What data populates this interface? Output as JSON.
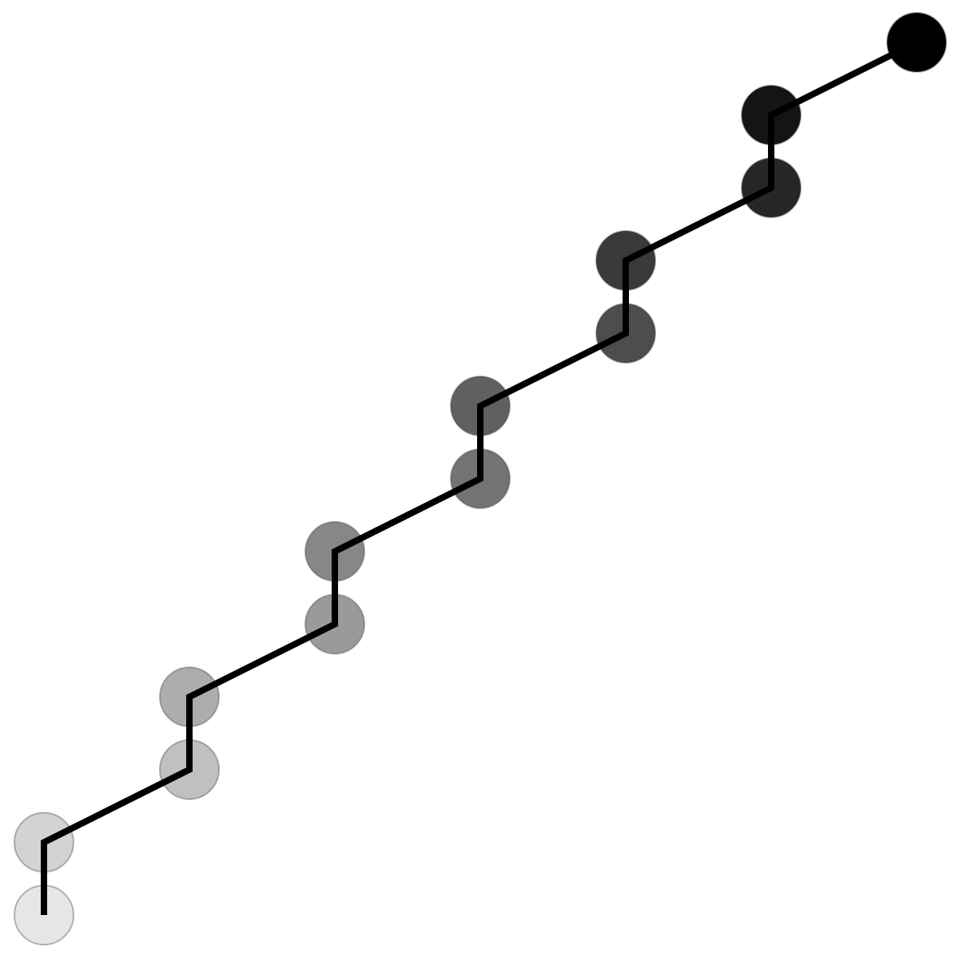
{
  "diagram": {
    "path_color": "#000000",
    "node_outline_color": "#333333",
    "nodes": [
      {
        "color": "#e6e6e6"
      },
      {
        "color": "#d3d3d3"
      },
      {
        "color": "#c0c0c0"
      },
      {
        "color": "#adadad"
      },
      {
        "color": "#9a9a9a"
      },
      {
        "color": "#878787"
      },
      {
        "color": "#737373"
      },
      {
        "color": "#606060"
      },
      {
        "color": "#4d4d4d"
      },
      {
        "color": "#3a3a3a"
      },
      {
        "color": "#272727"
      },
      {
        "color": "#141414"
      },
      {
        "color": "#000000"
      }
    ]
  }
}
